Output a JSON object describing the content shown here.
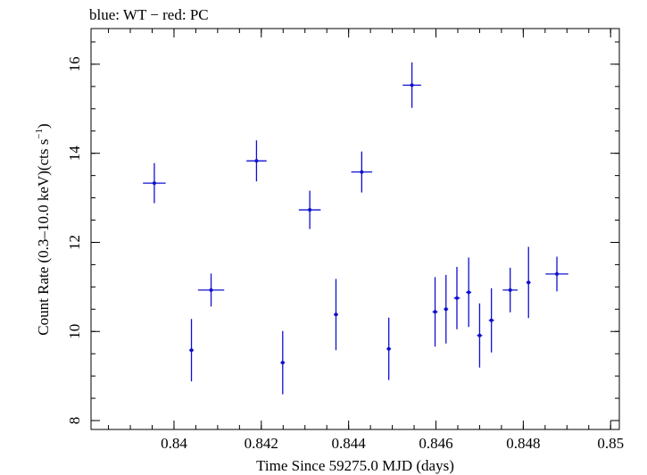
{
  "chart_data": {
    "type": "scatter",
    "title": "blue: WT − red: PC",
    "xlabel": "Time Since 59275.0 MJD (days)",
    "ylabel_main": "Count Rate (0.3–10.0 keV)(cts s",
    "ylabel_sup": "−1",
    "ylabel_end": ")",
    "xlim": [
      0.8381,
      0.8502
    ],
    "ylim": [
      7.8,
      16.8
    ],
    "x_ticks": [
      0.84,
      0.842,
      0.844,
      0.846,
      0.848,
      0.85
    ],
    "x_tick_labels": [
      "0.84",
      "0.842",
      "0.844",
      "0.846",
      "0.848",
      "0.85"
    ],
    "y_ticks": [
      8,
      10,
      12,
      14,
      16
    ],
    "y_tick_labels": [
      "8",
      "10",
      "12",
      "14",
      "16"
    ],
    "grid": false,
    "series": [
      {
        "color": "#1010d0",
        "points": [
          {
            "x": 0.83955,
            "xerr": 0.00026,
            "y": 13.33,
            "yerr": 0.45
          },
          {
            "x": 0.8404,
            "xerr": 5e-05,
            "y": 9.58,
            "yerr": 0.7
          },
          {
            "x": 0.84085,
            "xerr": 0.0003,
            "y": 10.93,
            "yerr": 0.37
          },
          {
            "x": 0.84189,
            "xerr": 0.00023,
            "y": 13.83,
            "yerr": 0.46
          },
          {
            "x": 0.84249,
            "xerr": 5e-05,
            "y": 9.3,
            "yerr": 0.71
          },
          {
            "x": 0.84311,
            "xerr": 0.00025,
            "y": 12.73,
            "yerr": 0.43
          },
          {
            "x": 0.84371,
            "xerr": 5e-05,
            "y": 10.38,
            "yerr": 0.8
          },
          {
            "x": 0.8443,
            "xerr": 0.00024,
            "y": 13.58,
            "yerr": 0.46
          },
          {
            "x": 0.84492,
            "xerr": 5e-05,
            "y": 9.61,
            "yerr": 0.7
          },
          {
            "x": 0.84545,
            "xerr": 0.00021,
            "y": 15.53,
            "yerr": 0.51
          },
          {
            "x": 0.84598,
            "xerr": 6e-05,
            "y": 10.44,
            "yerr": 0.78
          },
          {
            "x": 0.84623,
            "xerr": 5e-05,
            "y": 10.5,
            "yerr": 0.77
          },
          {
            "x": 0.84648,
            "xerr": 7e-05,
            "y": 10.75,
            "yerr": 0.7
          },
          {
            "x": 0.84675,
            "xerr": 6e-05,
            "y": 10.88,
            "yerr": 0.78
          },
          {
            "x": 0.847,
            "xerr": 6e-05,
            "y": 9.91,
            "yerr": 0.72
          },
          {
            "x": 0.84727,
            "xerr": 6e-05,
            "y": 10.25,
            "yerr": 0.72
          },
          {
            "x": 0.8477,
            "xerr": 0.00017,
            "y": 10.93,
            "yerr": 0.5
          },
          {
            "x": 0.84812,
            "xerr": 5e-05,
            "y": 11.1,
            "yerr": 0.8
          },
          {
            "x": 0.84877,
            "xerr": 0.00026,
            "y": 11.29,
            "yerr": 0.39
          }
        ]
      }
    ]
  }
}
